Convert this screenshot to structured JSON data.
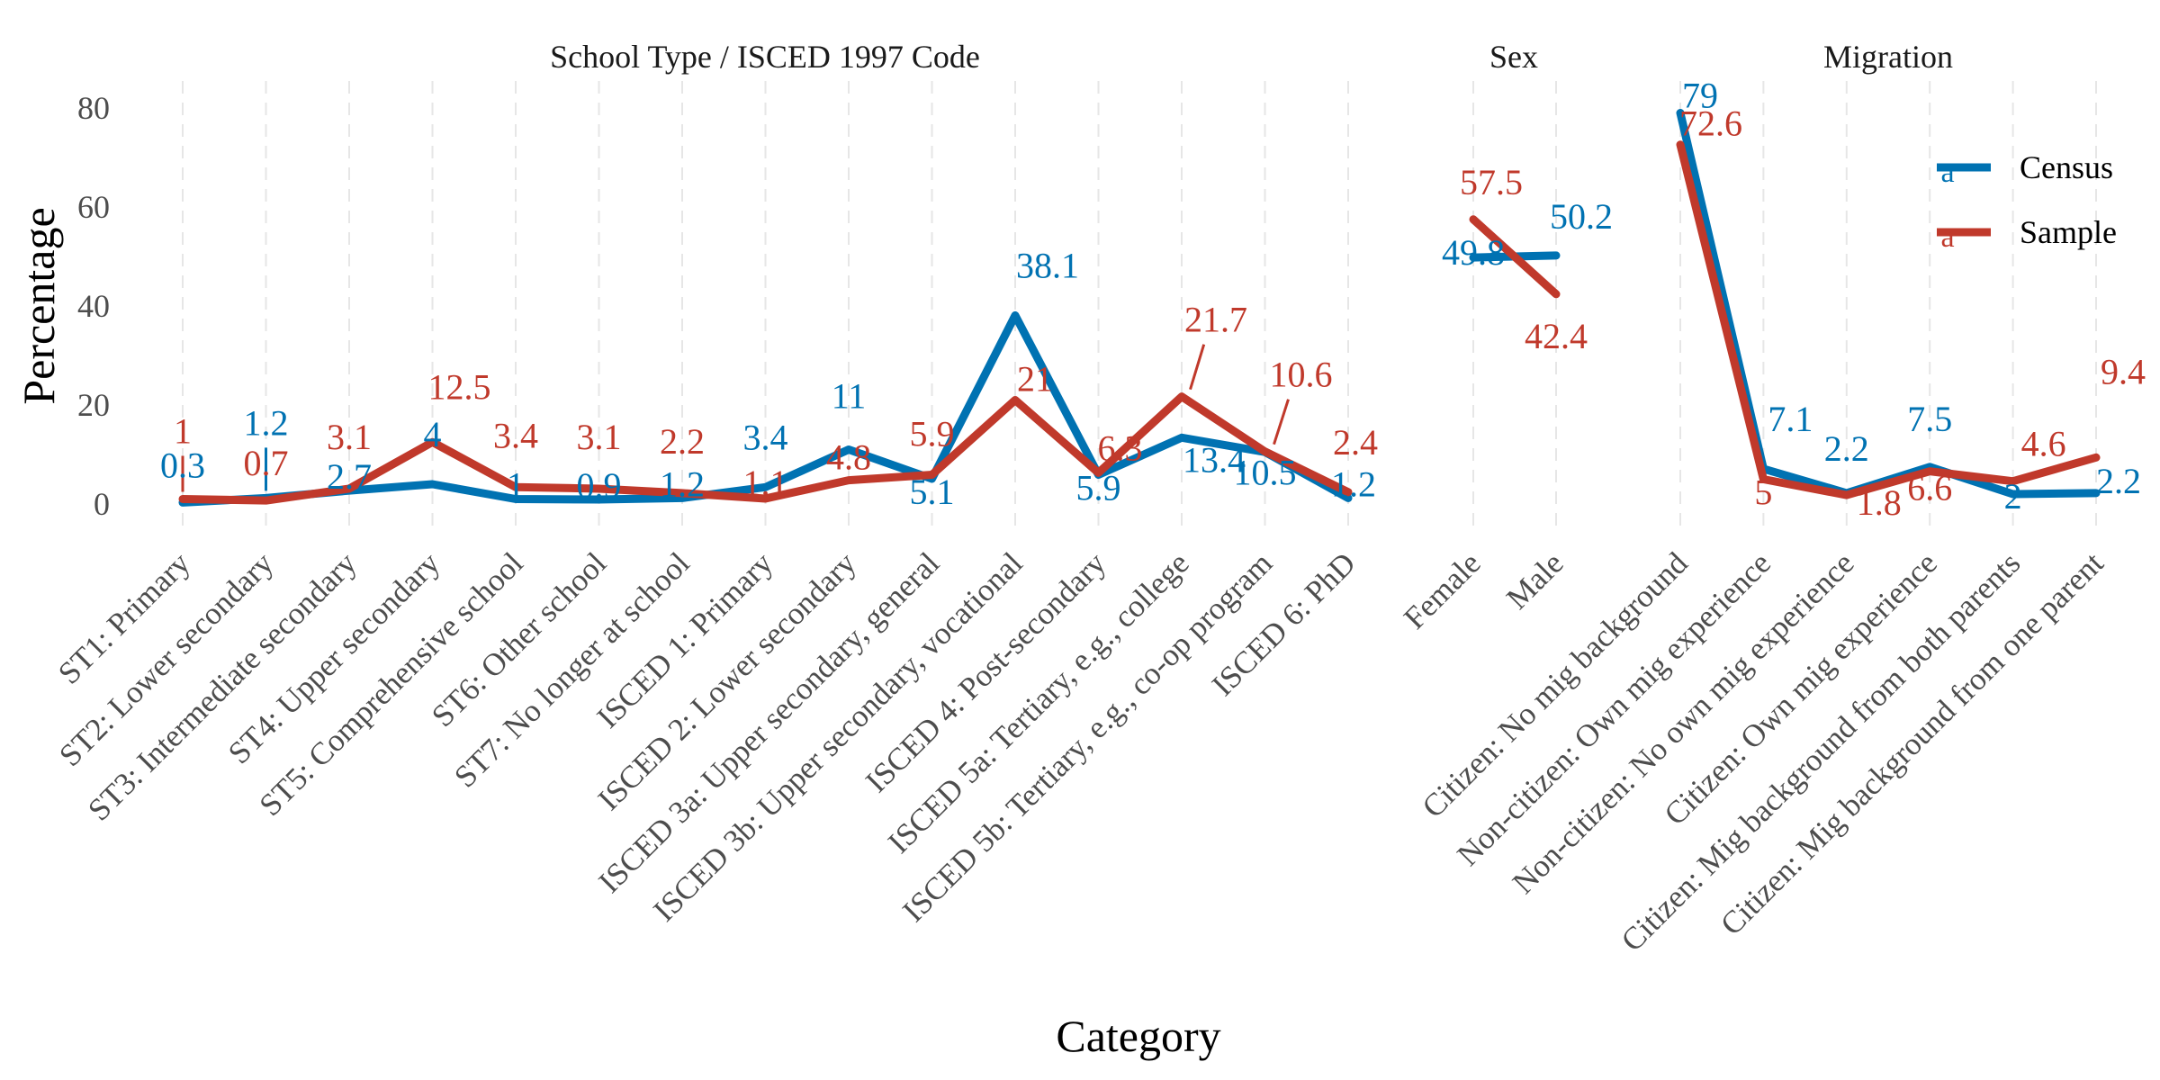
{
  "chart_data": {
    "type": "line",
    "xlabel": "Category",
    "ylabel": "Percentage",
    "ylim": [
      -5,
      85
    ],
    "yticks": [
      0,
      20,
      40,
      60,
      80
    ],
    "grid": "vertical-dashed",
    "legend_position": "top-right",
    "legend": [
      {
        "name": "Census",
        "color": "#0072B2",
        "glyph": "a"
      },
      {
        "name": "Sample",
        "color": "#C0392B",
        "glyph": "a"
      }
    ],
    "panels": [
      {
        "title": "School Type / ISCED 1997 Code",
        "categories": [
          "ST1: Primary",
          "ST2: Lower secondary",
          "ST3: Intermediate secondary",
          "ST4: Upper secondary",
          "ST5: Comprehensive school",
          "ST6: Other school",
          "ST7: No longer at school",
          "ISCED 1: Primary",
          "ISCED 2: Lower secondary",
          "ISCED 3a: Upper secondary, general",
          "ISCED 3b: Upper secondary, vocational",
          "ISCED 4: Post-secondary",
          "ISCED 5a: Tertiary, e.g., college",
          "ISCED 5b: Tertiary, e.g., co-op program",
          "ISCED 6: PhD"
        ],
        "series": [
          {
            "name": "Census",
            "values": [
              0.3,
              1.2,
              2.7,
              4,
              1,
              0.9,
              1.2,
              3.4,
              11,
              5.1,
              38.1,
              5.9,
              13.4,
              10.5,
              1.2
            ]
          },
          {
            "name": "Sample",
            "values": [
              1,
              0.7,
              3.1,
              12.5,
              3.4,
              3.1,
              2.2,
              1.1,
              4.8,
              5.9,
              21,
              6.3,
              21.7,
              10.6,
              2.4
            ]
          }
        ]
      },
      {
        "title": "Sex",
        "categories": [
          "Female",
          "Male"
        ],
        "series": [
          {
            "name": "Census",
            "values": [
              49.8,
              50.2
            ]
          },
          {
            "name": "Sample",
            "values": [
              57.5,
              42.4
            ]
          }
        ]
      },
      {
        "title": "Migration",
        "categories": [
          "Citizen: No mig background",
          "Non-citizen: Own mig experience",
          "Non-citizen: No own mig experience",
          "Citizen: Own mig experience",
          "Citizen: Mig background from both parents",
          "Citizen: Mig background from one parent"
        ],
        "series": [
          {
            "name": "Census",
            "values": [
              79,
              7.1,
              2.2,
              7.5,
              2,
              2.2
            ]
          },
          {
            "name": "Sample",
            "values": [
              72.6,
              5,
              1.8,
              6.6,
              4.6,
              9.4
            ]
          }
        ]
      }
    ]
  }
}
